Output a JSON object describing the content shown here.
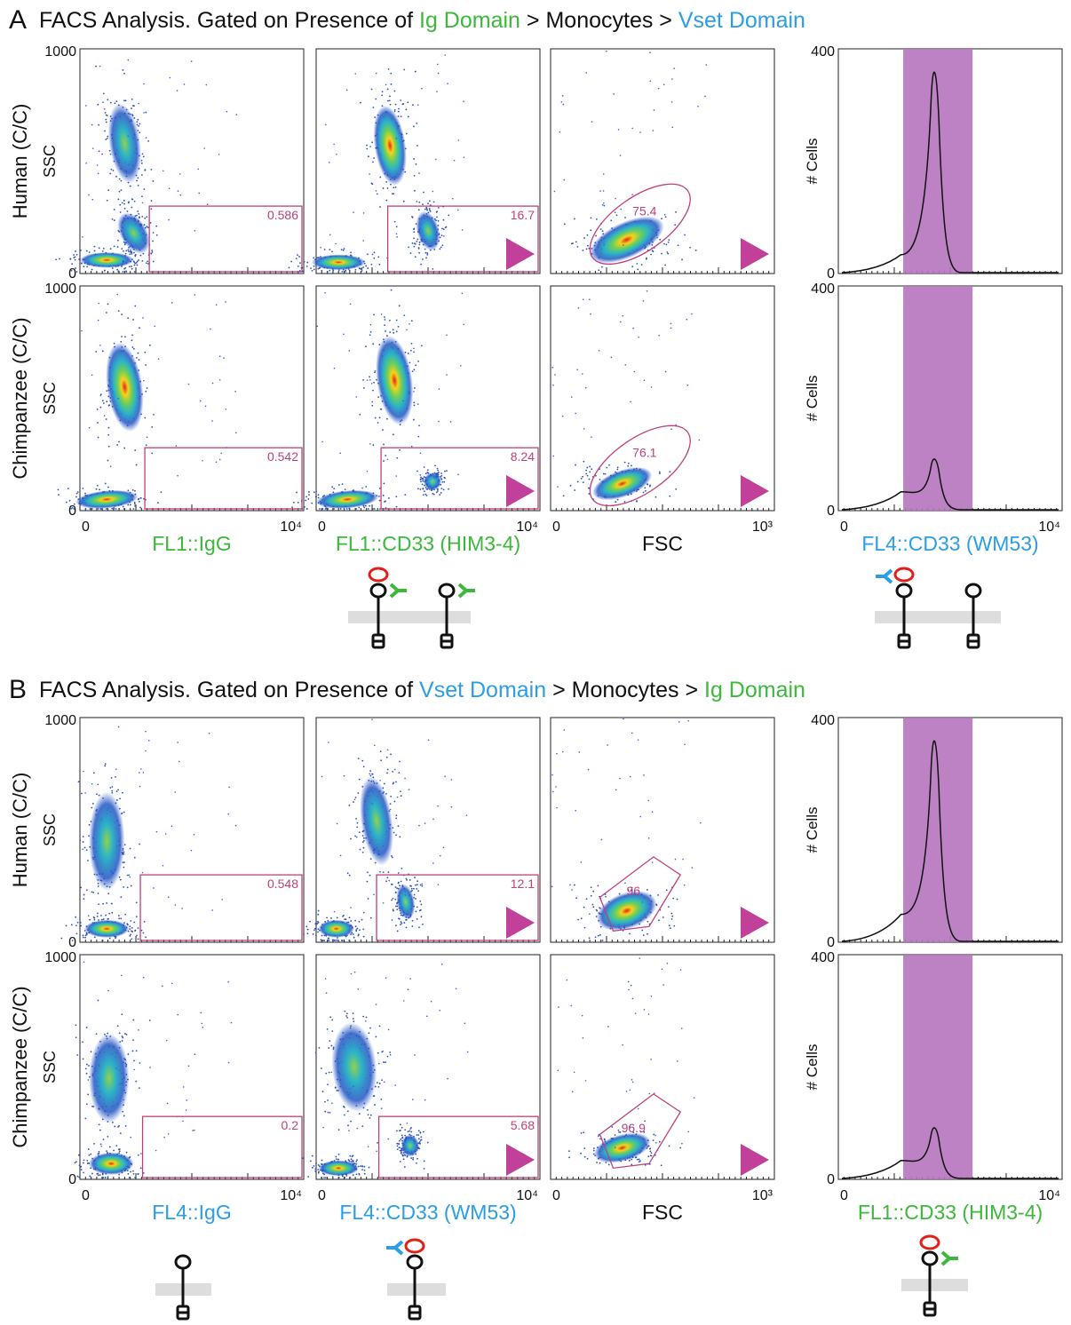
{
  "sections": [
    {
      "letter": "A",
      "title": [
        {
          "text": "FACS Analysis. Gated on Presence of ",
          "color": "#111111"
        },
        {
          "text": "Ig Domain",
          "color": "#3cb83a"
        },
        {
          "text": " > Monocytes > ",
          "color": "#111111"
        },
        {
          "text": "Vset Domain",
          "color": "#2a9ee6"
        }
      ],
      "rows": [
        {
          "label": "Human (C/C)",
          "gates": [
            "0.586",
            "16.7",
            "75.4"
          ]
        },
        {
          "label": "Chimpanzee (C/C)",
          "gates": [
            "0.542",
            "8.24",
            "76.1"
          ]
        }
      ],
      "x_labels": [
        {
          "text": "FL1::IgG",
          "color": "#3cb83a"
        },
        {
          "text": "FL1::CD33 (HIM3-4)",
          "color": "#3cb83a"
        },
        {
          "text": "FSC",
          "color": "#111111"
        },
        {
          "text": "FL4::CD33 (WM53)",
          "color": "#2a9ee6"
        }
      ]
    },
    {
      "letter": "B",
      "title": [
        {
          "text": "FACS Analysis. Gated on Presence of ",
          "color": "#111111"
        },
        {
          "text": "Vset Domain",
          "color": "#2a9ee6"
        },
        {
          "text": " > Monocytes > ",
          "color": "#111111"
        },
        {
          "text": "Ig Domain",
          "color": "#3cb83a"
        }
      ],
      "rows": [
        {
          "label": "Human (C/C)",
          "gates": [
            "0.548",
            "12.1",
            "96"
          ]
        },
        {
          "label": "Chimpanzee (C/C)",
          "gates": [
            "0.2",
            "5.68",
            "96.9"
          ]
        }
      ],
      "x_labels": [
        {
          "text": "FL4::IgG",
          "color": "#2a9ee6"
        },
        {
          "text": "FL4::CD33 (WM53)",
          "color": "#2a9ee6"
        },
        {
          "text": "FSC",
          "color": "#111111"
        },
        {
          "text": "FL1::CD33 (HIM3-4)",
          "color": "#3cb83a"
        }
      ]
    }
  ],
  "axes": {
    "ssc": "SSC",
    "cells": "# Cells",
    "scatter_y_ticks": [
      "1000",
      "0"
    ],
    "hist_y_ticks": [
      "400",
      "0"
    ],
    "fl_x_ticks": [
      "0",
      "10⁴"
    ],
    "fsc_x_ticks": [
      "0",
      "10³"
    ]
  }
}
